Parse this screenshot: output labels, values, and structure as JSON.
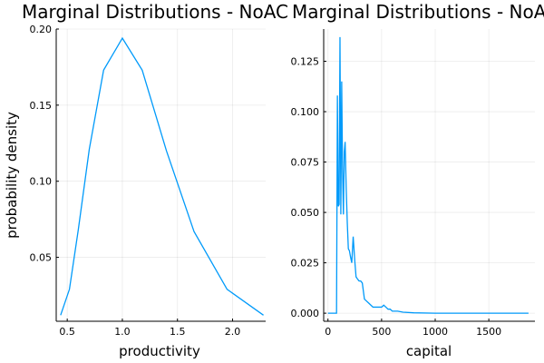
{
  "chart_data": [
    {
      "type": "line",
      "title": "Marginal Distributions - NoAC",
      "xlabel": "productivity",
      "ylabel": "probability density",
      "xlim": [
        0.4,
        2.3
      ],
      "ylim": [
        0.008,
        0.2
      ],
      "xticks": [
        0.5,
        1.0,
        1.5,
        2.0
      ],
      "xtick_labels": [
        "0.5",
        "1.0",
        "1.5",
        "2.0"
      ],
      "yticks": [
        0.05,
        0.1,
        0.15,
        0.2
      ],
      "ytick_labels": [
        "0.05",
        "0.10",
        "0.15",
        "0.20"
      ],
      "grid": true,
      "series": [
        {
          "color": "#009AFA",
          "x": [
            0.44,
            0.52,
            0.6,
            0.7,
            0.83,
            1.0,
            1.18,
            1.4,
            1.65,
            1.95,
            2.28
          ],
          "y": [
            0.012,
            0.029,
            0.068,
            0.121,
            0.173,
            0.194,
            0.173,
            0.12,
            0.067,
            0.029,
            0.012
          ]
        }
      ]
    },
    {
      "type": "line",
      "title": "Marginal Distributions - NoAC",
      "xlabel": "capital",
      "ylabel": "",
      "xlim": [
        -40,
        1930
      ],
      "ylim": [
        -0.004,
        0.141
      ],
      "xticks": [
        0,
        500,
        1000,
        1500
      ],
      "xtick_labels": [
        "0",
        "500",
        "1000",
        "1500"
      ],
      "yticks": [
        0.0,
        0.025,
        0.05,
        0.075,
        0.1,
        0.125
      ],
      "ytick_labels": [
        "0.000",
        "0.025",
        "0.050",
        "0.075",
        "0.100",
        "0.125"
      ],
      "grid": true,
      "series": [
        {
          "color": "#009AFA",
          "x": [
            0,
            75,
            80,
            88,
            96,
            104,
            112,
            120,
            128,
            136,
            144,
            152,
            160,
            170,
            180,
            190,
            200,
            210,
            222,
            235,
            250,
            262,
            275,
            290,
            305,
            320,
            340,
            360,
            380,
            400,
            420,
            440,
            460,
            480,
            500,
            520,
            540,
            560,
            580,
            600,
            650,
            700,
            800,
            1000,
            1200,
            1500,
            1870
          ],
          "y": [
            0.0,
            0.0,
            0.0,
            0.108,
            0.053,
            0.054,
            0.137,
            0.049,
            0.115,
            0.071,
            0.049,
            0.08,
            0.085,
            0.062,
            0.045,
            0.032,
            0.031,
            0.028,
            0.025,
            0.038,
            0.026,
            0.018,
            0.017,
            0.016,
            0.016,
            0.015,
            0.007,
            0.006,
            0.005,
            0.004,
            0.003,
            0.003,
            0.003,
            0.003,
            0.003,
            0.004,
            0.003,
            0.002,
            0.002,
            0.001,
            0.001,
            0.0005,
            0.0002,
            0.0,
            0.0,
            0.0,
            0.0
          ]
        }
      ]
    }
  ]
}
